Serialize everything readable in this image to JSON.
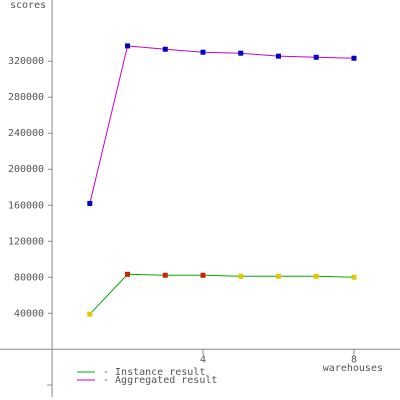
{
  "chart_data": {
    "type": "line",
    "y_label": "scores",
    "x_label": "warehouses",
    "x": [
      1,
      2,
      3,
      4,
      5,
      6,
      7,
      8
    ],
    "series": [
      {
        "name": "- Instance result",
        "color": "#00aa00",
        "marker_colors": [
          "#e6c800",
          "#cc2200",
          "#cc2200",
          "#cc2200",
          "#e6c800",
          "#e6c800",
          "#e6c800",
          "#e6c800"
        ],
        "values": [
          39000,
          83300,
          82200,
          82200,
          81100,
          81100,
          81100,
          80000
        ]
      },
      {
        "name": "- Aggregated result",
        "color": "#cc00cc",
        "marker_colors": [
          "#0000cc",
          "#0000cc",
          "#0000cc",
          "#0000cc",
          "#0000cc",
          "#0000cc",
          "#0000cc",
          "#0000cc"
        ],
        "values": [
          162000,
          337000,
          333300,
          330000,
          328900,
          325600,
          324400,
          323300
        ]
      }
    ],
    "xlim": [
      -1.38,
      9.22
    ],
    "xticks": [
      4,
      8
    ],
    "ylim": [
      -53000,
      388000
    ],
    "yticks": [
      40000,
      80000,
      120000,
      160000,
      200000,
      240000,
      280000,
      320000
    ]
  }
}
